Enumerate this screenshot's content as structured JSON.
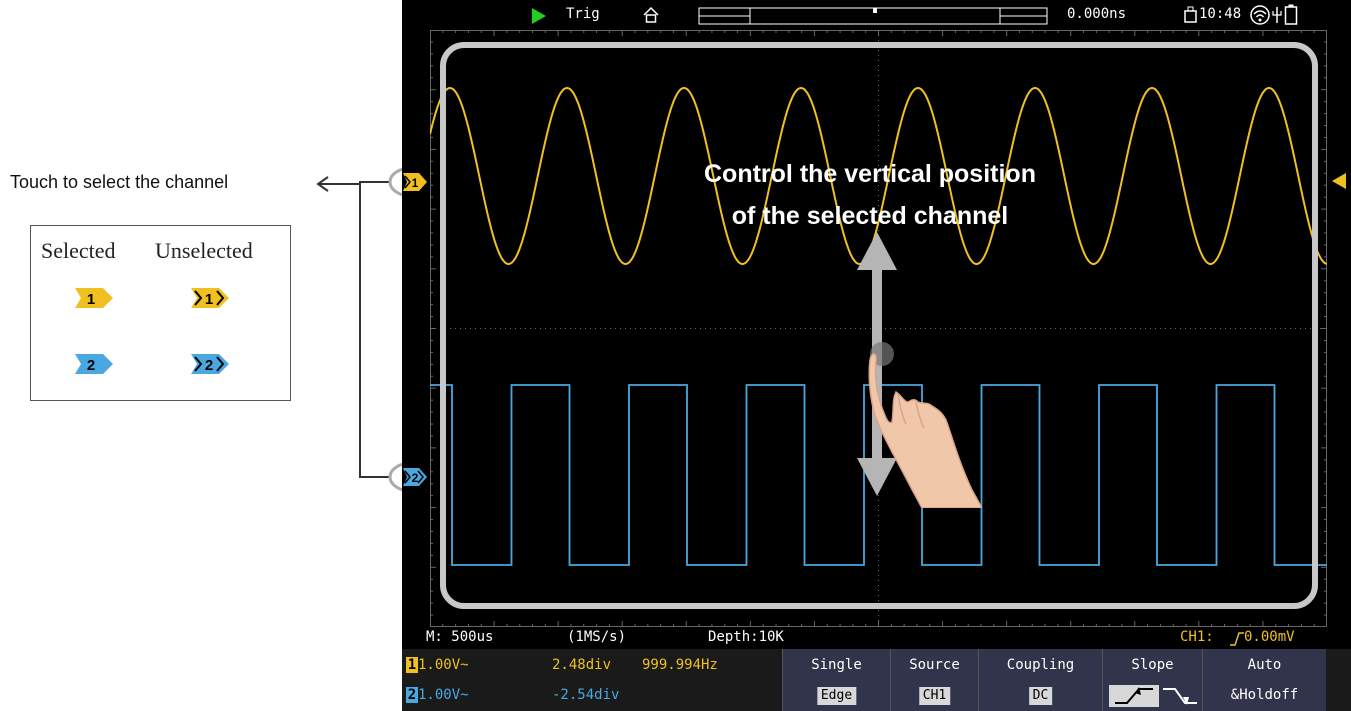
{
  "left_panel": {
    "caption": "Touch to select the channel",
    "legend": {
      "selected_label": "Selected",
      "unselected_label": "Unselected",
      "ch1_label": "1",
      "ch2_label": "2"
    }
  },
  "colors": {
    "ch1": "#f0c020",
    "ch2": "#4aa8e0",
    "overlay_border": "#c8c8c8",
    "menu_bg": "#31344a",
    "status_text": "#ffffff",
    "trigger_text": "#f0c020"
  },
  "top_bar": {
    "run_state_icon": "play-icon",
    "trig_label": "Trig",
    "home_icon": "home-icon",
    "time_offset": "0.000ns",
    "time": "10:48",
    "wifi_icon": "wifi-icon",
    "usb_icon": "usb-icon",
    "battery_icon": "battery-icon"
  },
  "annotation": {
    "line1": "Control the vertical position",
    "line2": "of the selected channel"
  },
  "status": {
    "timebase": "M: 500us",
    "sample_rate": "(1MS/s)",
    "depth": "Depth:10K",
    "trigger": "CH1:",
    "trigger_level": "0.00mV"
  },
  "channels": [
    {
      "num": "1",
      "volts": "1.00V~",
      "position": "2.48div",
      "freq": "999.994Hz"
    },
    {
      "num": "2",
      "volts": "1.00V~",
      "position": "-2.54div",
      "freq": ""
    }
  ],
  "menu": [
    {
      "label": "Single",
      "value": "Edge"
    },
    {
      "label": "Source",
      "value": "CH1"
    },
    {
      "label": "Coupling",
      "value": "DC"
    },
    {
      "label": "Slope",
      "value": ""
    },
    {
      "label": "Auto",
      "value": "&Holdoff"
    }
  ]
}
